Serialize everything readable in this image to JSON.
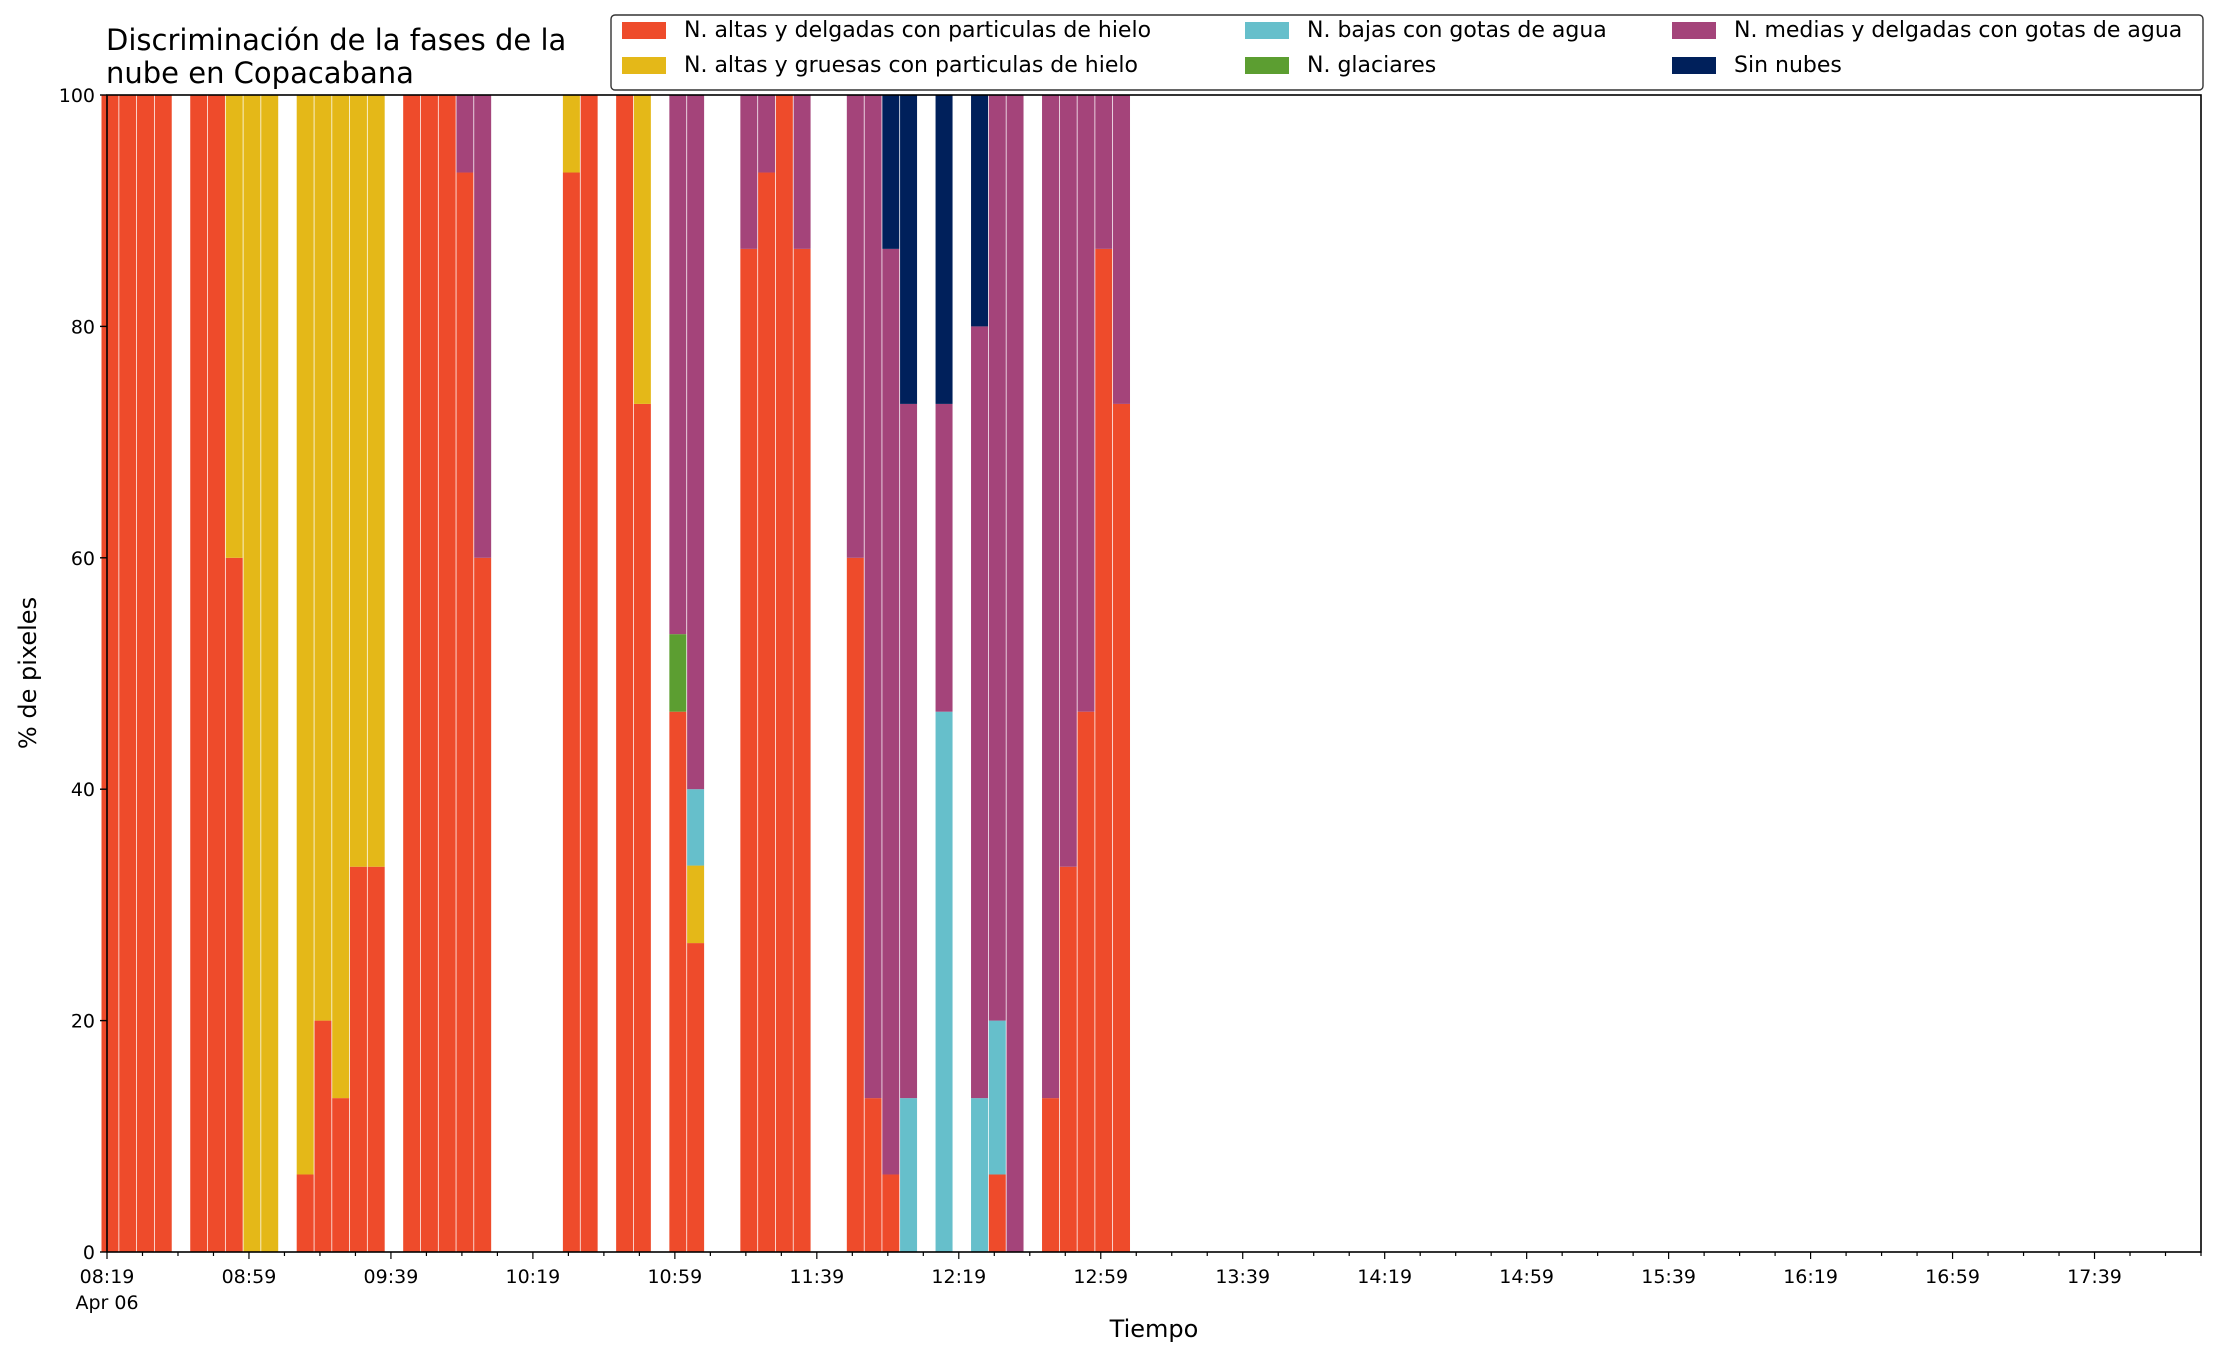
{
  "chart_data": {
    "type": "bar",
    "stacked": true,
    "title_lines": [
      "Discriminación de la fases de la",
      "nube en Copacabana"
    ],
    "xlabel": "Tiempo",
    "ylabel": "% de pixeles",
    "ylim": [
      0,
      100
    ],
    "yticks": [
      0,
      20,
      40,
      60,
      80,
      100
    ],
    "x_start": "08:19",
    "x_end": "18:09",
    "x_step_minutes": 10,
    "xtick_labels": [
      "08:19",
      "08:59",
      "09:39",
      "10:19",
      "10:59",
      "11:39",
      "12:19",
      "12:59",
      "13:39",
      "14:19",
      "14:59",
      "15:39",
      "16:19",
      "16:59",
      "17:39"
    ],
    "xtick_sublabel": "Apr 06",
    "legend_position": "top-right",
    "grid": false,
    "series": [
      {
        "name": "N. altas y delgadas con particulas de hielo",
        "color": "#ee4b2b"
      },
      {
        "name": "N. altas y gruesas con particulas de hielo",
        "color": "#e4b818"
      },
      {
        "name": "N. bajas con gotas de agua",
        "color": "#66bfcb"
      },
      {
        "name": "N. glaciares",
        "color": "#5c9e31"
      },
      {
        "name": "N. medias y delgadas con gotas de agua",
        "color": "#a4447a"
      },
      {
        "name": "Sin nubes",
        "color": "#00205b"
      }
    ],
    "bars": [
      {
        "time": "08:19",
        "values": [
          100,
          0,
          0,
          0,
          0,
          0
        ]
      },
      {
        "time": "08:24",
        "values": [
          100,
          0,
          0,
          0,
          0,
          0
        ]
      },
      {
        "time": "08:29",
        "values": [
          100,
          0,
          0,
          0,
          0,
          0
        ]
      },
      {
        "time": "08:34",
        "values": [
          100,
          0,
          0,
          0,
          0,
          0
        ]
      },
      {
        "time": "08:44",
        "values": [
          100,
          0,
          0,
          0,
          0,
          0
        ]
      },
      {
        "time": "08:49",
        "values": [
          100,
          0,
          0,
          0,
          0,
          0
        ]
      },
      {
        "time": "08:54",
        "values": [
          60,
          40,
          0,
          0,
          0,
          0
        ]
      },
      {
        "time": "08:59",
        "values": [
          0,
          100,
          0,
          0,
          0,
          0
        ]
      },
      {
        "time": "09:04",
        "values": [
          0,
          100,
          0,
          0,
          0,
          0
        ]
      },
      {
        "time": "09:14",
        "values": [
          6.7,
          93.3,
          0,
          0,
          0,
          0
        ]
      },
      {
        "time": "09:19",
        "values": [
          20,
          80,
          0,
          0,
          0,
          0
        ]
      },
      {
        "time": "09:24",
        "values": [
          13.3,
          86.7,
          0,
          0,
          0,
          0
        ]
      },
      {
        "time": "09:29",
        "values": [
          33.3,
          66.7,
          0,
          0,
          0,
          0
        ]
      },
      {
        "time": "09:34",
        "values": [
          33.3,
          66.7,
          0,
          0,
          0,
          0
        ]
      },
      {
        "time": "09:44",
        "values": [
          100,
          0,
          0,
          0,
          0,
          0
        ]
      },
      {
        "time": "09:49",
        "values": [
          100,
          0,
          0,
          0,
          0,
          0
        ]
      },
      {
        "time": "09:54",
        "values": [
          100,
          0,
          0,
          0,
          0,
          0
        ]
      },
      {
        "time": "09:59",
        "values": [
          93.3,
          0,
          0,
          0,
          6.7,
          0
        ]
      },
      {
        "time": "10:04",
        "values": [
          60,
          0,
          0,
          0,
          40,
          0
        ]
      },
      {
        "time": "10:29",
        "values": [
          93.3,
          6.7,
          0,
          0,
          0,
          0
        ]
      },
      {
        "time": "10:34",
        "values": [
          100,
          0,
          0,
          0,
          0,
          0
        ]
      },
      {
        "time": "10:44",
        "values": [
          100,
          0,
          0,
          0,
          0,
          0
        ]
      },
      {
        "time": "10:49",
        "values": [
          73.3,
          26.7,
          0,
          0,
          0,
          0
        ]
      },
      {
        "time": "10:59",
        "values": [
          46.7,
          0,
          0,
          6.7,
          46.6,
          0
        ]
      },
      {
        "time": "11:04",
        "values": [
          26.7,
          6.7,
          6.6,
          0,
          60,
          0
        ]
      },
      {
        "time": "11:19",
        "values": [
          86.7,
          0,
          0,
          0,
          13.3,
          0
        ]
      },
      {
        "time": "11:24",
        "values": [
          93.3,
          0,
          0,
          0,
          6.7,
          0
        ]
      },
      {
        "time": "11:29",
        "values": [
          100,
          0,
          0,
          0,
          0,
          0
        ]
      },
      {
        "time": "11:34",
        "values": [
          86.7,
          0,
          0,
          0,
          13.3,
          0
        ]
      },
      {
        "time": "11:49",
        "values": [
          60,
          0,
          0,
          0,
          40,
          0
        ]
      },
      {
        "time": "11:54",
        "values": [
          13.3,
          0,
          0,
          0,
          86.7,
          0
        ]
      },
      {
        "time": "11:59",
        "values": [
          6.7,
          0,
          0,
          0,
          80,
          13.3
        ]
      },
      {
        "time": "12:04",
        "values": [
          0,
          0,
          13.3,
          0,
          60,
          26.7
        ]
      },
      {
        "time": "12:14",
        "values": [
          0,
          0,
          46.7,
          0,
          26.6,
          26.7
        ]
      },
      {
        "time": "12:24",
        "values": [
          0,
          0,
          13.3,
          0,
          66.7,
          20
        ]
      },
      {
        "time": "12:29",
        "values": [
          6.7,
          0,
          13.3,
          0,
          80,
          0
        ]
      },
      {
        "time": "12:34",
        "values": [
          0,
          0,
          0,
          0,
          100,
          0
        ]
      },
      {
        "time": "12:44",
        "values": [
          13.3,
          0,
          0,
          0,
          86.7,
          0
        ]
      },
      {
        "time": "12:49",
        "values": [
          33.3,
          0,
          0,
          0,
          66.7,
          0
        ]
      },
      {
        "time": "12:54",
        "values": [
          46.7,
          0,
          0,
          0,
          53.3,
          0
        ]
      },
      {
        "time": "12:59",
        "values": [
          86.7,
          0,
          0,
          0,
          13.3,
          0
        ]
      },
      {
        "time": "13:04",
        "values": [
          73.3,
          0,
          0,
          0,
          26.7,
          0
        ]
      }
    ]
  }
}
